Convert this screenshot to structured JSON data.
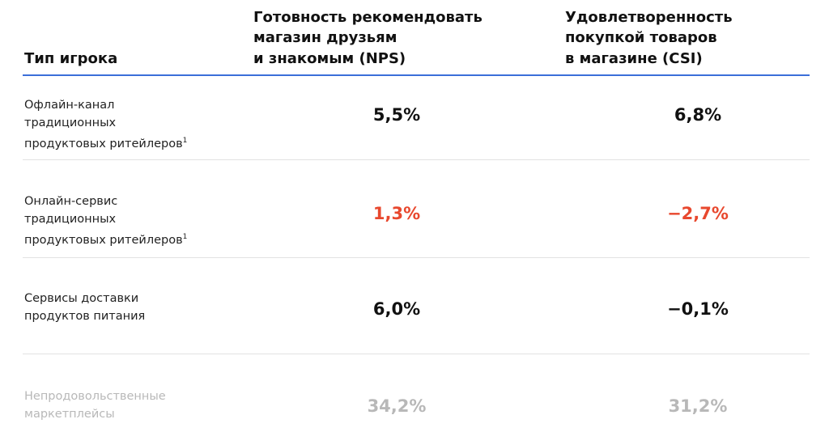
{
  "table": {
    "header": [
      [
        "Тип игрока"
      ],
      [
        "Готовность рекомендовать",
        "магазин друзьям",
        "и знакомым (NPS)"
      ],
      [
        "Удовлетворенность",
        "покупкой товаров",
        "в магазине (CSI)"
      ]
    ],
    "rows": [
      {
        "label": [
          "Офлайн-канал",
          "традиционных",
          "продуктовых ритейлеров"
        ],
        "footnote": "1",
        "color": "#222222",
        "cells": [
          {
            "text": "5,5%",
            "color": "#111111"
          },
          {
            "text": "6,8%",
            "color": "#111111"
          }
        ]
      },
      {
        "label": [
          "Онлайн-сервис",
          "традиционных",
          "продуктовых ритейлеров"
        ],
        "footnote": "1",
        "color": "#222222",
        "cells": [
          {
            "text": "1,3%",
            "color": "#e8482e"
          },
          {
            "text": "−2,7%",
            "color": "#e8482e"
          }
        ]
      },
      {
        "label": [
          "Сервисы доставки",
          "продуктов питания"
        ],
        "color": "#222222",
        "cells": [
          {
            "text": "6,0%",
            "color": "#111111"
          },
          {
            "text": "−0,1%",
            "color": "#111111"
          }
        ]
      },
      {
        "label": [
          "Непродовольственные",
          "маркетплейсы"
        ],
        "color": "#b8b8b8",
        "cells": [
          {
            "text": "34,2%",
            "color": "#b8b8b8"
          },
          {
            "text": "31,2%",
            "color": "#b8b8b8"
          }
        ]
      }
    ]
  }
}
